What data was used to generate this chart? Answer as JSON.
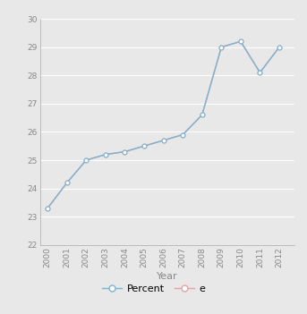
{
  "years": [
    2000,
    2001,
    2002,
    2003,
    2004,
    2005,
    2006,
    2007,
    2008,
    2009,
    2010,
    2011,
    2012
  ],
  "percent": [
    23.3,
    24.2,
    25.0,
    25.2,
    25.3,
    25.5,
    25.7,
    25.9,
    26.6,
    29.0,
    29.2,
    28.1,
    29.0
  ],
  "e_values": [
    23.3,
    24.2,
    25.0,
    25.2,
    25.3,
    25.5,
    25.7,
    25.9,
    26.6,
    29.0,
    29.2,
    28.1,
    29.0
  ],
  "line_color_percent": "#7ab4d4",
  "line_color_e": "#e8a0a0",
  "marker_color_percent": "#7ab4d4",
  "marker_color_e": "#e8a0a0",
  "background_color": "#e8e8e8",
  "plot_bg_color": "#e8e8e8",
  "ylim": [
    22,
    30
  ],
  "yticks": [
    22,
    23,
    24,
    25,
    26,
    27,
    28,
    29,
    30
  ],
  "xlabel": "Year",
  "ylabel": "",
  "title": "",
  "legend_labels": [
    "Percent",
    "e"
  ],
  "grid_color": "#ffffff",
  "axis_color": "#aaaaaa",
  "tick_fontsize": 6.5,
  "label_fontsize": 8
}
